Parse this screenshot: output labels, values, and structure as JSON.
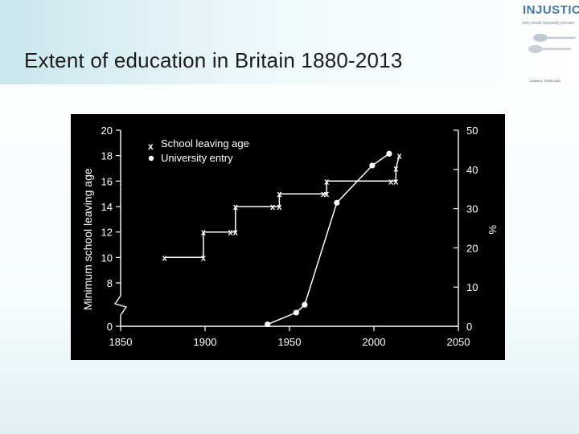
{
  "slide": {
    "title": "Extent of education in Britain 1880-2013"
  },
  "logo": {
    "title": "INJUSTICE",
    "subtitle": "why social inequality persists",
    "author": "DANNY DORLING"
  },
  "chart_data": {
    "type": "line",
    "title": "",
    "xlabel": "",
    "ylabel_left": "Minimum school leaving age",
    "ylabel_right": "%",
    "xlim": [
      1850,
      2050
    ],
    "ylim_left_labels": [
      "0",
      "8",
      "10",
      "12",
      "14",
      "16",
      "18",
      "20"
    ],
    "ylim_right": [
      0,
      50
    ],
    "x_ticks": [
      "1850",
      "1900",
      "1950",
      "2000",
      "2050"
    ],
    "left_ticks": [
      "0",
      "8",
      "10",
      "12",
      "14",
      "16",
      "18",
      "20"
    ],
    "right_ticks": [
      "0",
      "10",
      "20",
      "30",
      "40",
      "50"
    ],
    "legend_position": "top-left",
    "series": [
      {
        "name": "School leaving age",
        "axis": "left",
        "marker": "x",
        "points": [
          [
            1876,
            10
          ],
          [
            1899,
            10
          ],
          [
            1899,
            12
          ],
          [
            1915,
            12
          ],
          [
            1918,
            12
          ],
          [
            1918,
            14
          ],
          [
            1940,
            14
          ],
          [
            1944,
            14
          ],
          [
            1944,
            15
          ],
          [
            1970,
            15
          ],
          [
            1972,
            15
          ],
          [
            1972,
            16
          ],
          [
            2010,
            16
          ],
          [
            2013,
            16
          ],
          [
            2013,
            17
          ],
          [
            2015,
            18
          ]
        ]
      },
      {
        "name": "University entry",
        "axis": "right",
        "marker": "circle",
        "points": [
          [
            1937,
            0.5
          ],
          [
            1954,
            3.5
          ],
          [
            1959,
            5.5
          ],
          [
            1978,
            31.5
          ],
          [
            1999,
            41
          ],
          [
            2009,
            44
          ]
        ]
      }
    ]
  }
}
